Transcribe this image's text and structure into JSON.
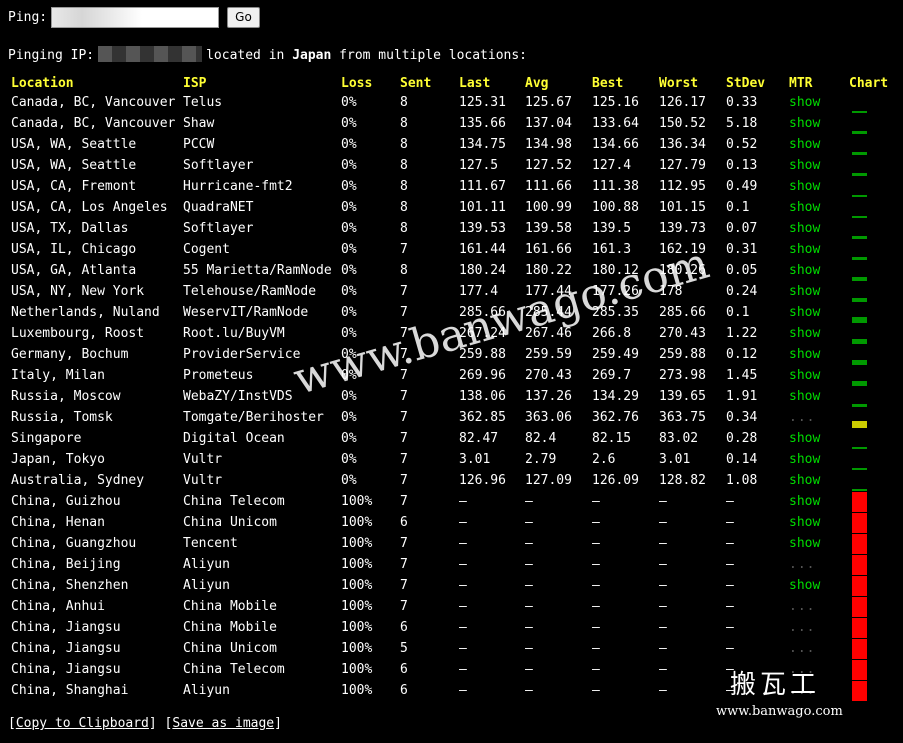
{
  "form": {
    "label": "Ping:",
    "input_value": "",
    "go_label": "Go"
  },
  "status": {
    "prefix": "Pinging IP:",
    "middle": "located in",
    "country": "Japan",
    "suffix": "from multiple locations:"
  },
  "columns": {
    "location": "Location",
    "isp": "ISP",
    "loss": "Loss",
    "sent": "Sent",
    "last": "Last",
    "avg": "Avg",
    "best": "Best",
    "worst": "Worst",
    "stdev": "StDev",
    "mtr": "MTR",
    "chart": "Chart"
  },
  "colors": {
    "header": "#ffff33",
    "ok_bar": "#009900",
    "warn_bar": "#cccc00",
    "fail_bar": "#ff0000",
    "mtr_link": "#00dd00"
  },
  "rows": [
    {
      "location": "Canada, BC, Vancouver",
      "isp": "Telus",
      "loss": "0%",
      "sent": "8",
      "last": "125.31",
      "avg": "125.67",
      "best": "125.16",
      "worst": "126.17",
      "stdev": "0.33",
      "mtr": "show",
      "chart_level": 0.12,
      "chart_status": "ok"
    },
    {
      "location": "Canada, BC, Vancouver",
      "isp": "Shaw",
      "loss": "0%",
      "sent": "8",
      "last": "135.66",
      "avg": "137.04",
      "best": "133.64",
      "worst": "150.52",
      "stdev": "5.18",
      "mtr": "show",
      "chart_level": 0.13,
      "chart_status": "ok"
    },
    {
      "location": "USA, WA, Seattle",
      "isp": "PCCW",
      "loss": "0%",
      "sent": "8",
      "last": "134.75",
      "avg": "134.98",
      "best": "134.66",
      "worst": "136.34",
      "stdev": "0.52",
      "mtr": "show",
      "chart_level": 0.13,
      "chart_status": "ok"
    },
    {
      "location": "USA, WA, Seattle",
      "isp": "Softlayer",
      "loss": "0%",
      "sent": "8",
      "last": "127.5",
      "avg": "127.52",
      "best": "127.4",
      "worst": "127.79",
      "stdev": "0.13",
      "mtr": "show",
      "chart_level": 0.13,
      "chart_status": "ok"
    },
    {
      "location": "USA, CA, Fremont",
      "isp": "Hurricane-fmt2",
      "loss": "0%",
      "sent": "8",
      "last": "111.67",
      "avg": "111.66",
      "best": "111.38",
      "worst": "112.95",
      "stdev": "0.49",
      "mtr": "show",
      "chart_level": 0.11,
      "chart_status": "ok"
    },
    {
      "location": "USA, CA, Los Angeles",
      "isp": "QuadraNET",
      "loss": "0%",
      "sent": "8",
      "last": "101.11",
      "avg": "100.99",
      "best": "100.88",
      "worst": "101.15",
      "stdev": "0.1",
      "mtr": "show",
      "chart_level": 0.1,
      "chart_status": "ok"
    },
    {
      "location": "USA, TX, Dallas",
      "isp": "Softlayer",
      "loss": "0%",
      "sent": "8",
      "last": "139.53",
      "avg": "139.58",
      "best": "139.5",
      "worst": "139.73",
      "stdev": "0.07",
      "mtr": "show",
      "chart_level": 0.14,
      "chart_status": "ok"
    },
    {
      "location": "USA, IL, Chicago",
      "isp": "Cogent",
      "loss": "0%",
      "sent": "7",
      "last": "161.44",
      "avg": "161.66",
      "best": "161.3",
      "worst": "162.19",
      "stdev": "0.31",
      "mtr": "show",
      "chart_level": 0.16,
      "chart_status": "ok"
    },
    {
      "location": "USA, GA, Atlanta",
      "isp": "55 Marietta/RamNode",
      "loss": "0%",
      "sent": "8",
      "last": "180.24",
      "avg": "180.22",
      "best": "180.12",
      "worst": "180.26",
      "stdev": "0.05",
      "mtr": "show",
      "chart_level": 0.18,
      "chart_status": "ok"
    },
    {
      "location": "USA, NY, New York",
      "isp": "Telehouse/RamNode",
      "loss": "0%",
      "sent": "7",
      "last": "177.4",
      "avg": "177.44",
      "best": "177.26",
      "worst": "178",
      "stdev": "0.24",
      "mtr": "show",
      "chart_level": 0.18,
      "chart_status": "ok"
    },
    {
      "location": "Netherlands, Nuland",
      "isp": "WeservIT/RamNode",
      "loss": "0%",
      "sent": "7",
      "last": "285.66",
      "avg": "285.44",
      "best": "285.35",
      "worst": "285.66",
      "stdev": "0.1",
      "mtr": "show",
      "chart_level": 0.29,
      "chart_status": "ok"
    },
    {
      "location": "Luxembourg, Roost",
      "isp": "Root.lu/BuyVM",
      "loss": "0%",
      "sent": "7",
      "last": "267.24",
      "avg": "267.46",
      "best": "266.8",
      "worst": "270.43",
      "stdev": "1.22",
      "mtr": "show",
      "chart_level": 0.27,
      "chart_status": "ok"
    },
    {
      "location": "Germany, Bochum",
      "isp": "ProviderService",
      "loss": "0%",
      "sent": "7",
      "last": "259.88",
      "avg": "259.59",
      "best": "259.49",
      "worst": "259.88",
      "stdev": "0.12",
      "mtr": "show",
      "chart_level": 0.26,
      "chart_status": "ok"
    },
    {
      "location": "Italy, Milan",
      "isp": "Prometeus",
      "loss": "0%",
      "sent": "7",
      "last": "269.96",
      "avg": "270.43",
      "best": "269.7",
      "worst": "273.98",
      "stdev": "1.45",
      "mtr": "show",
      "chart_level": 0.27,
      "chart_status": "ok"
    },
    {
      "location": "Russia, Moscow",
      "isp": "WebaZY/InstVDS",
      "loss": "0%",
      "sent": "7",
      "last": "138.06",
      "avg": "137.26",
      "best": "134.29",
      "worst": "139.65",
      "stdev": "1.91",
      "mtr": "show",
      "chart_level": 0.14,
      "chart_status": "ok"
    },
    {
      "location": "Russia, Tomsk",
      "isp": "Tomgate/Berihoster",
      "loss": "0%",
      "sent": "7",
      "last": "362.85",
      "avg": "363.06",
      "best": "362.76",
      "worst": "363.75",
      "stdev": "0.34",
      "mtr": "...",
      "chart_level": 0.36,
      "chart_status": "warn"
    },
    {
      "location": "Singapore",
      "isp": "Digital Ocean",
      "loss": "0%",
      "sent": "7",
      "last": "82.47",
      "avg": "82.4",
      "best": "82.15",
      "worst": "83.02",
      "stdev": "0.28",
      "mtr": "show",
      "chart_level": 0.08,
      "chart_status": "ok"
    },
    {
      "location": "Japan, Tokyo",
      "isp": "Vultr",
      "loss": "0%",
      "sent": "7",
      "last": "3.01",
      "avg": "2.79",
      "best": "2.6",
      "worst": "3.01",
      "stdev": "0.14",
      "mtr": "show",
      "chart_level": 0.003,
      "chart_status": "ok"
    },
    {
      "location": "Australia, Sydney",
      "isp": "Vultr",
      "loss": "0%",
      "sent": "7",
      "last": "126.96",
      "avg": "127.09",
      "best": "126.09",
      "worst": "128.82",
      "stdev": "1.08",
      "mtr": "show",
      "chart_level": 0.12,
      "chart_status": "ok"
    },
    {
      "location": "China, Guizhou",
      "isp": "China Telecom",
      "loss": "100%",
      "sent": "7",
      "last": "–",
      "avg": "–",
      "best": "–",
      "worst": "–",
      "stdev": "–",
      "mtr": "show",
      "chart_level": 1,
      "chart_status": "fail"
    },
    {
      "location": "China, Henan",
      "isp": "China Unicom",
      "loss": "100%",
      "sent": "6",
      "last": "–",
      "avg": "–",
      "best": "–",
      "worst": "–",
      "stdev": "–",
      "mtr": "show",
      "chart_level": 1,
      "chart_status": "fail"
    },
    {
      "location": "China, Guangzhou",
      "isp": "Tencent",
      "loss": "100%",
      "sent": "7",
      "last": "–",
      "avg": "–",
      "best": "–",
      "worst": "–",
      "stdev": "–",
      "mtr": "show",
      "chart_level": 1,
      "chart_status": "fail"
    },
    {
      "location": "China, Beijing",
      "isp": "Aliyun",
      "loss": "100%",
      "sent": "7",
      "last": "–",
      "avg": "–",
      "best": "–",
      "worst": "–",
      "stdev": "–",
      "mtr": "...",
      "chart_level": 1,
      "chart_status": "fail"
    },
    {
      "location": "China, Shenzhen",
      "isp": "Aliyun",
      "loss": "100%",
      "sent": "7",
      "last": "–",
      "avg": "–",
      "best": "–",
      "worst": "–",
      "stdev": "–",
      "mtr": "show",
      "chart_level": 1,
      "chart_status": "fail"
    },
    {
      "location": "China, Anhui",
      "isp": "China Mobile",
      "loss": "100%",
      "sent": "7",
      "last": "–",
      "avg": "–",
      "best": "–",
      "worst": "–",
      "stdev": "–",
      "mtr": "...",
      "chart_level": 1,
      "chart_status": "fail"
    },
    {
      "location": "China, Jiangsu",
      "isp": "China Mobile",
      "loss": "100%",
      "sent": "6",
      "last": "–",
      "avg": "–",
      "best": "–",
      "worst": "–",
      "stdev": "–",
      "mtr": "...",
      "chart_level": 1,
      "chart_status": "fail"
    },
    {
      "location": "China, Jiangsu",
      "isp": "China Unicom",
      "loss": "100%",
      "sent": "5",
      "last": "–",
      "avg": "–",
      "best": "–",
      "worst": "–",
      "stdev": "–",
      "mtr": "...",
      "chart_level": 1,
      "chart_status": "fail"
    },
    {
      "location": "China, Jiangsu",
      "isp": "China Telecom",
      "loss": "100%",
      "sent": "6",
      "last": "–",
      "avg": "–",
      "best": "–",
      "worst": "–",
      "stdev": "–",
      "mtr": "...",
      "chart_level": 1,
      "chart_status": "fail"
    },
    {
      "location": "China, Shanghai",
      "isp": "Aliyun",
      "loss": "100%",
      "sent": "6",
      "last": "–",
      "avg": "–",
      "best": "–",
      "worst": "–",
      "stdev": "–",
      "mtr": "...",
      "chart_level": 1,
      "chart_status": "fail"
    }
  ],
  "footer": {
    "copy_label": "Copy to Clipboard",
    "save_label": "Save as image"
  },
  "watermark": {
    "text": "www.banwago.com",
    "brand_cn": "搬瓦工",
    "brand_url": "www.banwago.com"
  }
}
